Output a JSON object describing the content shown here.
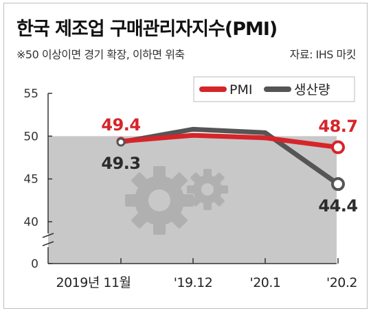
{
  "header": {
    "title": "한국 제조업 구매관리자지수(PMI)",
    "subtitle": "※50 이상이면 경기 확장, 이하면 위축",
    "source": "자료: IHS 마킷"
  },
  "colors": {
    "pmi": "#d6252a",
    "production": "#555555",
    "shade": "#c8c8c8",
    "gear": "#b0b0b0"
  },
  "icons": [
    "gear-icon-large",
    "gear-icon-small"
  ],
  "chart_data": {
    "type": "line",
    "title": "한국 제조업 구매관리자지수(PMI)",
    "categories": [
      "2019년 11월",
      "'19.12",
      "'20.1",
      "'20.2"
    ],
    "y_ticks": [
      "0",
      "40",
      "45",
      "50",
      "55"
    ],
    "ylim": [
      40,
      55
    ],
    "y_axis_break": true,
    "shaded_below": 50,
    "legend_position": "top-right",
    "series": [
      {
        "name": "PMI",
        "values": [
          49.4,
          50.1,
          49.8,
          48.7
        ],
        "labels": [
          "49.4",
          "",
          "",
          "48.7"
        ]
      },
      {
        "name": "생산량",
        "values": [
          49.3,
          50.8,
          50.4,
          44.4
        ],
        "labels": [
          "49.3",
          "",
          "",
          "44.4"
        ]
      }
    ]
  }
}
